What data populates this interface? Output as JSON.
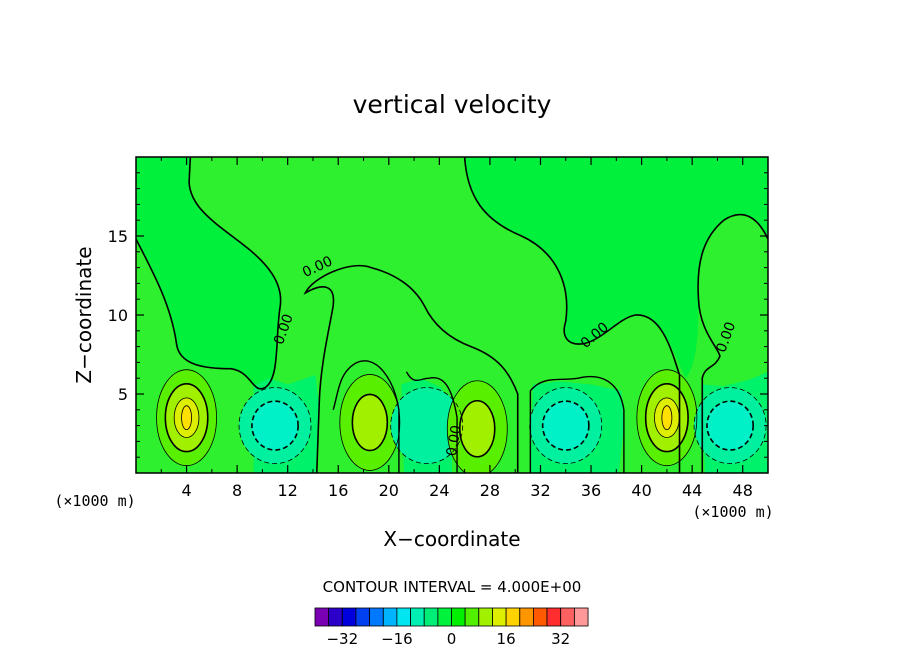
{
  "chart_data": {
    "type": "contour",
    "title": "vertical velocity",
    "xlabel": "X−coordinate",
    "ylabel": "Z−coordinate",
    "x_unit_left": "(×1000 m)",
    "x_unit_right": "(×1000 m)",
    "xlim": [
      0,
      50
    ],
    "ylim": [
      0,
      20
    ],
    "xticks": [
      4,
      8,
      12,
      16,
      20,
      24,
      28,
      32,
      36,
      40,
      44,
      48
    ],
    "yticks": [
      5,
      10,
      15
    ],
    "contour_interval_text": "CONTOUR INTERVAL = 4.000E+00",
    "contour_label": "0.00",
    "colorbar": {
      "tick_labels": [
        "−32",
        "−16",
        "0",
        "16",
        "32"
      ],
      "tick_values": [
        -32,
        -16,
        0,
        16,
        32
      ],
      "colors": [
        "#7a00b4",
        "#2c00c8",
        "#0000dc",
        "#0040f0",
        "#0078ff",
        "#00b4ff",
        "#00e6f0",
        "#00f0b4",
        "#00ee78",
        "#00f23c",
        "#00f000",
        "#50f000",
        "#a0f000",
        "#ddee00",
        "#ffd200",
        "#ff9600",
        "#ff5a00",
        "#ff2d2d",
        "#ff6060",
        "#ff9898"
      ]
    },
    "background_color": "#00f03c",
    "cells": [
      {
        "type": "updraft",
        "center_x": 4.0,
        "center_z": 3.5,
        "max": 13
      },
      {
        "type": "downdraft",
        "center_x": 11.0,
        "center_z": 3.0,
        "min": -9
      },
      {
        "type": "updraft",
        "center_x": 18.5,
        "center_z": 3.2,
        "max": 11
      },
      {
        "type": "downdraft",
        "center_x": 23.0,
        "center_z": 3.0,
        "min": -7
      },
      {
        "type": "updraft",
        "center_x": 27.0,
        "center_z": 2.8,
        "max": 11
      },
      {
        "type": "downdraft",
        "center_x": 34.0,
        "center_z": 3.0,
        "min": -9
      },
      {
        "type": "updraft",
        "center_x": 42.0,
        "center_z": 3.5,
        "max": 14
      },
      {
        "type": "downdraft",
        "center_x": 47.0,
        "center_z": 3.0,
        "min": -9
      }
    ]
  }
}
